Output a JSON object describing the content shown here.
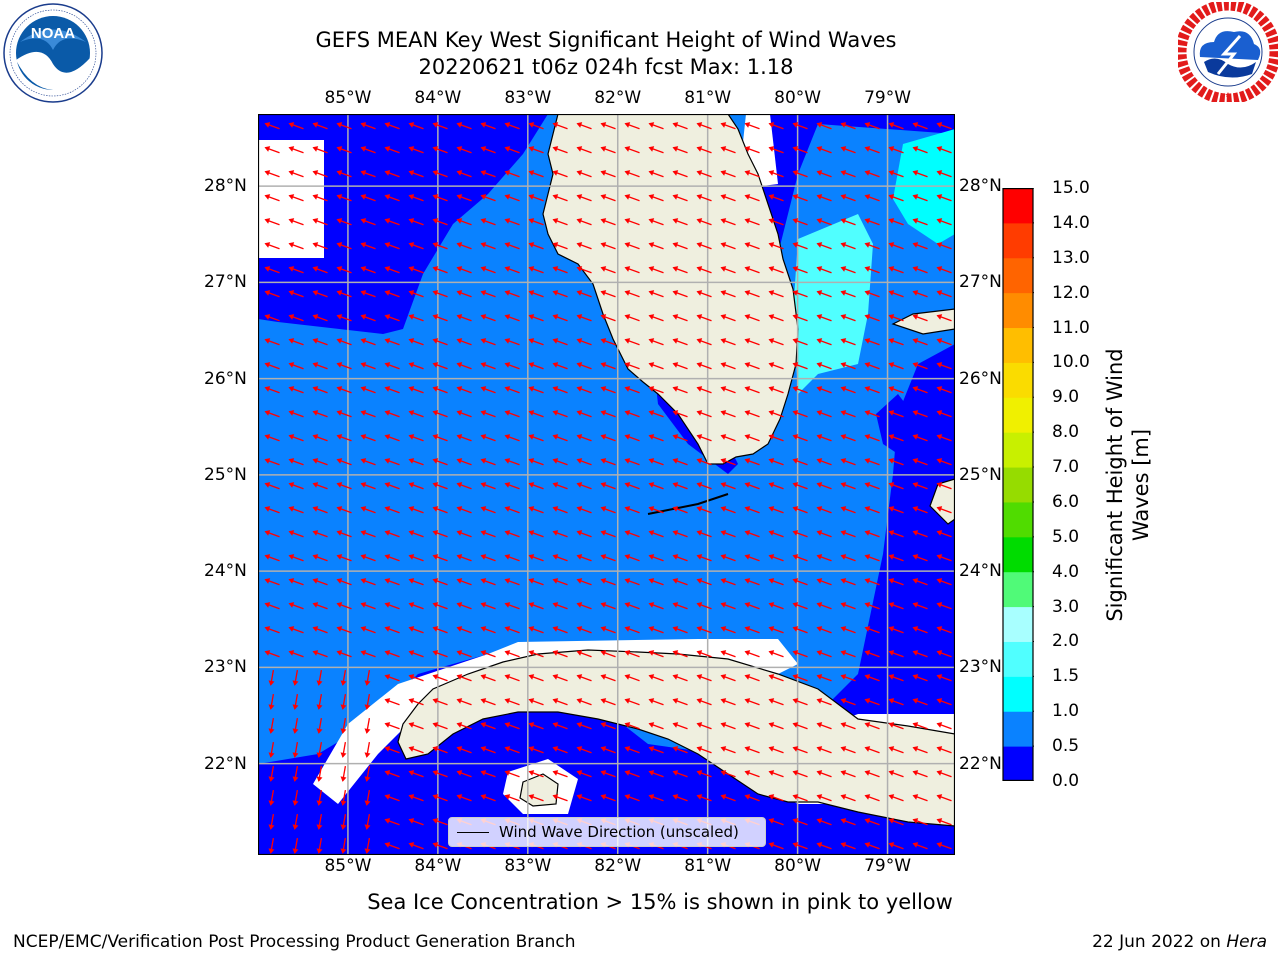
{
  "header": {
    "title_line1": "GEFS MEAN Key West Significant Height of Wind Waves",
    "title_line2": "20220621 t06z 024h fcst   Max: 1.18"
  },
  "logos": {
    "left": {
      "name": "noaa-logo",
      "text": "NOAA",
      "ring_text": "NATIONAL OCEANIC AND ATMOSPHERIC ADMINISTRATION • U.S. DEPARTMENT OF COMMERCE"
    },
    "right": {
      "name": "nws-logo",
      "ring_text": "NATIONAL WEATHER SERVICE"
    }
  },
  "map": {
    "lon_labels": [
      "85°W",
      "84°W",
      "83°W",
      "82°W",
      "81°W",
      "80°W",
      "79°W"
    ],
    "lon_values": [
      -85,
      -84,
      -83,
      -82,
      -81,
      -80,
      -79
    ],
    "lat_labels": [
      "28°N",
      "27°N",
      "26°N",
      "25°N",
      "24°N",
      "23°N",
      "22°N"
    ],
    "lat_values": [
      28,
      27,
      26,
      25,
      24,
      23,
      22
    ],
    "extent": {
      "lon_min": -86,
      "lon_max": -78.25,
      "lat_min": 21.05,
      "lat_max": 28.75
    },
    "land_color": "#efefdf",
    "arrow_color": "#ff0000",
    "grid_color": "#b0b0b0"
  },
  "colorbar": {
    "label": "Significant Height of Wind Waves [m]",
    "ticks": [
      "0.0",
      "0.5",
      "1.0",
      "1.5",
      "2.0",
      "3.0",
      "4.0",
      "5.0",
      "6.0",
      "7.0",
      "8.0",
      "9.0",
      "10.0",
      "11.0",
      "12.0",
      "13.0",
      "14.0",
      "15.0"
    ],
    "colors": [
      "#0000ff",
      "#0a82ff",
      "#00ffff",
      "#50ffff",
      "#a8ffff",
      "#50fa78",
      "#00dc00",
      "#50dc00",
      "#96dc00",
      "#c8f000",
      "#f0f000",
      "#fadc00",
      "#ffbe00",
      "#ff8c00",
      "#ff6400",
      "#ff3c00",
      "#ff0000"
    ]
  },
  "legend": {
    "label": "Wind Wave Direction (unscaled)"
  },
  "footnote": "Sea Ice Concentration > 15% is shown in pink to yellow",
  "credits": {
    "left": "NCEP/EMC/Verification Post Processing Product Generation Branch",
    "right_prefix": "22 Jun 2022 on ",
    "right_host": "Hera"
  }
}
